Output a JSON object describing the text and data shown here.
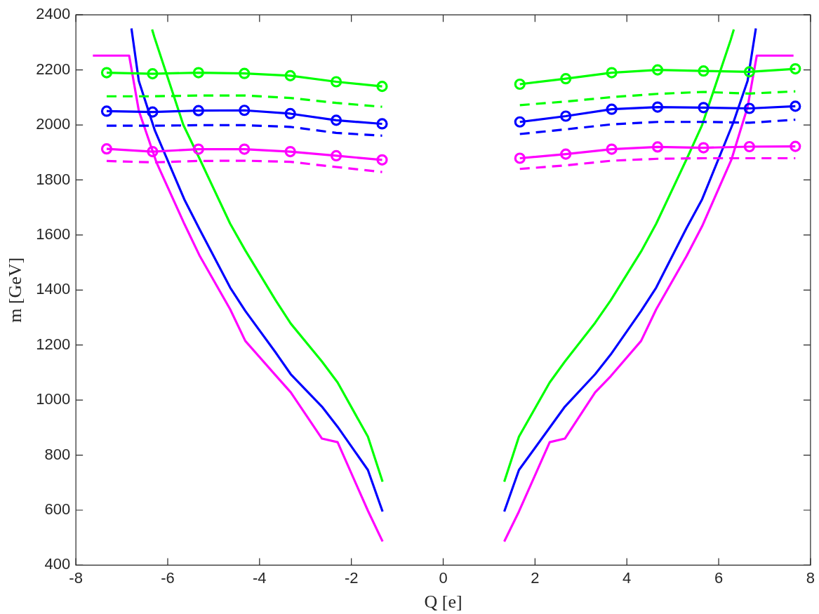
{
  "chart_data": {
    "type": "line",
    "xlabel": "Q [e]",
    "ylabel": "m [GeV]",
    "xlim": [
      -8,
      8
    ],
    "xticks": [
      -8,
      -6,
      -4,
      -2,
      0,
      2,
      4,
      6,
      8
    ],
    "ylim": [
      400,
      2400
    ],
    "yticks": [
      400,
      600,
      800,
      1000,
      1200,
      1400,
      1600,
      1800,
      2000,
      2200,
      2400
    ],
    "grid": false,
    "legend": false,
    "series": [
      {
        "color": "#00ff00",
        "marker": "circle",
        "line_style": "solid",
        "x": [
          -7.33,
          -6.33,
          -5.33,
          -4.33,
          -3.33,
          -2.33,
          -1.33,
          0,
          1.67,
          2.67,
          3.67,
          4.67,
          5.67,
          6.67,
          7.67
        ],
        "values": [
          2190,
          2186,
          2190,
          2187,
          2179,
          2157,
          2140,
          null,
          2148,
          2168,
          2190,
          2200,
          2196,
          2193,
          2204
        ]
      },
      {
        "color": "#00ff00",
        "marker": "none",
        "line_style": "dashed",
        "x": [
          -7.33,
          -6.33,
          -5.33,
          -4.33,
          -3.33,
          -2.33,
          -1.33,
          0,
          1.67,
          2.67,
          3.67,
          4.67,
          5.67,
          6.67,
          7.67
        ],
        "values": [
          2104,
          2104,
          2107,
          2107,
          2098,
          2080,
          2066,
          null,
          2072,
          2085,
          2101,
          2113,
          2120,
          2114,
          2122
        ]
      },
      {
        "color": "#0000ff",
        "marker": "circle",
        "line_style": "solid",
        "x": [
          -7.33,
          -6.33,
          -5.33,
          -4.33,
          -3.33,
          -2.33,
          -1.33,
          0,
          1.67,
          2.67,
          3.67,
          4.67,
          5.67,
          6.67,
          7.67
        ],
        "values": [
          2050,
          2047,
          2052,
          2053,
          2041,
          2017,
          2004,
          null,
          2011,
          2032,
          2057,
          2065,
          2063,
          2060,
          2068
        ]
      },
      {
        "color": "#0000ff",
        "marker": "none",
        "line_style": "dashed",
        "x": [
          -7.33,
          -6.33,
          -5.33,
          -4.33,
          -3.33,
          -2.33,
          -1.33,
          0,
          1.67,
          2.67,
          3.67,
          4.67,
          5.67,
          6.67,
          7.67
        ],
        "values": [
          1997,
          1997,
          1999,
          1999,
          1993,
          1971,
          1961,
          null,
          1967,
          1984,
          2002,
          2011,
          2011,
          2008,
          2019
        ]
      },
      {
        "color": "#ff00ff",
        "marker": "circle",
        "line_style": "solid",
        "x": [
          -7.33,
          -6.33,
          -5.33,
          -4.33,
          -3.33,
          -2.33,
          -1.33,
          0,
          1.67,
          2.67,
          3.67,
          4.67,
          5.67,
          6.67,
          7.67
        ],
        "values": [
          1913,
          1903,
          1912,
          1912,
          1903,
          1888,
          1873,
          null,
          1879,
          1894,
          1912,
          1920,
          1917,
          1921,
          1922
        ]
      },
      {
        "color": "#ff00ff",
        "marker": "none",
        "line_style": "dashed",
        "x": [
          -7.33,
          -6.33,
          -5.33,
          -4.33,
          -3.33,
          -2.33,
          -1.33,
          0,
          1.67,
          2.67,
          3.67,
          4.67,
          5.67,
          6.67,
          7.67
        ],
        "values": [
          1869,
          1864,
          1869,
          1870,
          1866,
          1847,
          1829,
          null,
          1840,
          1853,
          1870,
          1877,
          1879,
          1879,
          1879
        ]
      },
      {
        "color": "#00ff00",
        "marker": "none",
        "line_style": "solid",
        "x": [
          -6.34,
          -6.29,
          -5.66,
          -5.3,
          -4.64,
          -4.31,
          -3.65,
          -3.32,
          -2.64,
          -2.3,
          -1.64,
          -1.32,
          0,
          1.33,
          1.65,
          2.32,
          2.65,
          3.31,
          3.65,
          4.31,
          4.64,
          5.3,
          5.64,
          6.26,
          6.33
        ],
        "values": [
          2347,
          2319,
          2000,
          1875,
          1641,
          1544,
          1363,
          1278,
          1140,
          1064,
          867,
          703,
          null,
          703,
          867,
          1064,
          1140,
          1281,
          1363,
          1540,
          1641,
          1875,
          2000,
          2308,
          2347
        ]
      },
      {
        "color": "#0000ff",
        "marker": "none",
        "line_style": "solid",
        "x": [
          -6.79,
          -6.63,
          -6.28,
          -5.64,
          -5.3,
          -4.64,
          -4.31,
          -3.65,
          -3.32,
          -2.64,
          -2.3,
          -1.64,
          -1.32,
          0,
          1.33,
          1.65,
          2.65,
          3.31,
          3.65,
          4.31,
          4.64,
          5.3,
          5.64,
          6.32,
          6.63,
          6.81
        ],
        "values": [
          2351,
          2160,
          1980,
          1730,
          1619,
          1409,
          1324,
          1173,
          1094,
          976,
          903,
          746,
          595,
          null,
          595,
          746,
          976,
          1094,
          1166,
          1324,
          1409,
          1625,
          1730,
          2009,
          2160,
          2351
        ]
      },
      {
        "color": "#ff00ff",
        "marker": "none",
        "line_style": "solid",
        "x": [
          -7.63,
          -6.84,
          -6.63,
          -6.24,
          -5.64,
          -5.3,
          -4.64,
          -4.31,
          -3.65,
          -3.32,
          -2.64,
          -2.3,
          -1.64,
          -1.32,
          0,
          1.33,
          1.65,
          2.32,
          2.65,
          3.31,
          3.65,
          4.31,
          4.64,
          5.3,
          5.64,
          6.28,
          6.63,
          6.83,
          7.63
        ],
        "values": [
          2252,
          2252,
          2052,
          1862,
          1641,
          1523,
          1330,
          1215,
          1090,
          1028,
          860,
          847,
          598,
          486,
          null,
          486,
          595,
          847,
          860,
          1028,
          1087,
          1215,
          1330,
          1523,
          1632,
          1875,
          2065,
          2252,
          2252
        ]
      }
    ]
  }
}
